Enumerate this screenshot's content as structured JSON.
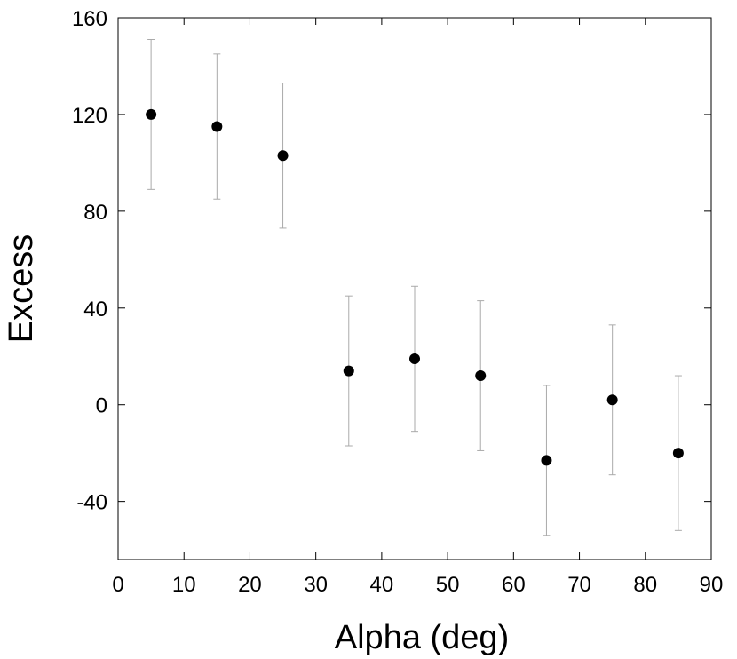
{
  "chart_data": {
    "type": "scatter",
    "title": "",
    "xlabel": "Alpha (deg)",
    "ylabel": "Excess",
    "xlim": [
      0,
      90
    ],
    "ylim": [
      -64,
      160
    ],
    "xticks": [
      0,
      10,
      20,
      30,
      40,
      50,
      60,
      70,
      80,
      90
    ],
    "yticks": [
      160,
      120,
      80,
      40,
      0,
      -40
    ],
    "grid": false,
    "legend": "none",
    "marker_color": "#000000",
    "errorbar_color": "#aaaaaa",
    "points": [
      {
        "x": 5,
        "y": 120,
        "err": 31
      },
      {
        "x": 15,
        "y": 115,
        "err": 30
      },
      {
        "x": 25,
        "y": 103,
        "err": 30
      },
      {
        "x": 35,
        "y": 14,
        "err": 31
      },
      {
        "x": 45,
        "y": 19,
        "err": 30
      },
      {
        "x": 55,
        "y": 12,
        "err": 31
      },
      {
        "x": 65,
        "y": -23,
        "err": 31
      },
      {
        "x": 75,
        "y": 2,
        "err": 31
      },
      {
        "x": 85,
        "y": -20,
        "err": 32
      }
    ]
  }
}
